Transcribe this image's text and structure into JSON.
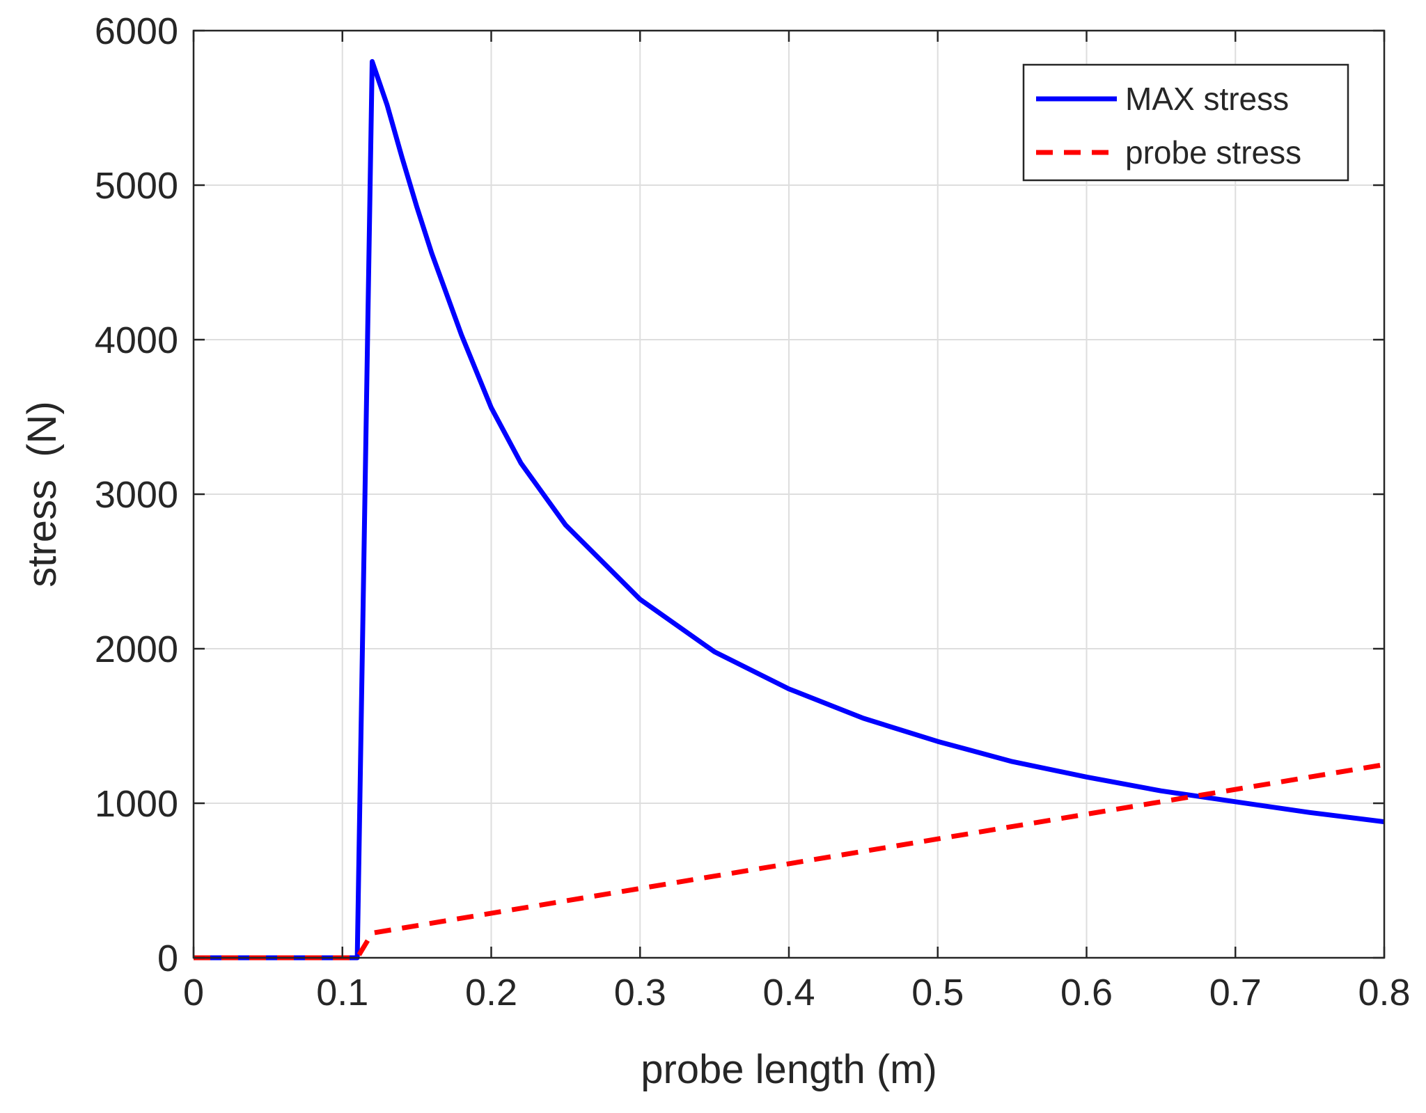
{
  "chart_data": {
    "type": "line",
    "title": "",
    "xlabel": "probe length (m)",
    "ylabel": "stress  (N)",
    "xlim": [
      0,
      0.8
    ],
    "ylim": [
      0,
      6000
    ],
    "grid": true,
    "legend_position": "top-right",
    "x_ticks": [
      0,
      0.1,
      0.2,
      0.3,
      0.4,
      0.5,
      0.6,
      0.7,
      0.8
    ],
    "x_tick_labels": [
      "0",
      "0.1",
      "0.2",
      "0.3",
      "0.4",
      "0.5",
      "0.6",
      "0.7",
      "0.8"
    ],
    "y_ticks": [
      0,
      1000,
      2000,
      3000,
      4000,
      5000,
      6000
    ],
    "y_tick_labels": [
      "0",
      "1000",
      "2000",
      "3000",
      "4000",
      "5000",
      "6000"
    ],
    "series": [
      {
        "name": "MAX stress",
        "style": "solid",
        "color": "#0000ff",
        "x": [
          0,
          0.11,
          0.12,
          0.13,
          0.14,
          0.15,
          0.16,
          0.18,
          0.2,
          0.22,
          0.25,
          0.3,
          0.35,
          0.4,
          0.45,
          0.5,
          0.55,
          0.6,
          0.65,
          0.7,
          0.75,
          0.8
        ],
        "y": [
          0,
          0,
          5800,
          5520,
          5180,
          4860,
          4560,
          4030,
          3560,
          3200,
          2800,
          2320,
          1980,
          1740,
          1550,
          1400,
          1270,
          1170,
          1080,
          1010,
          940,
          880
        ]
      },
      {
        "name": "probe stress",
        "style": "dashed",
        "color": "#ff0000",
        "x": [
          0,
          0.11,
          0.12,
          0.8
        ],
        "y": [
          0,
          0,
          160,
          1250
        ]
      }
    ]
  }
}
